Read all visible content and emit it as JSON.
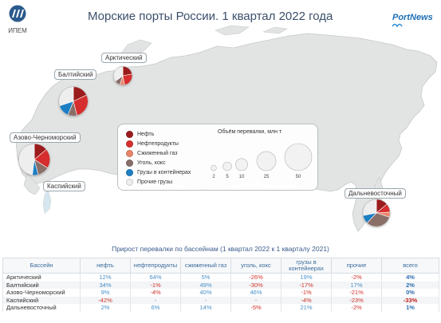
{
  "header": {
    "title": "Морские порты России. 1 квартал 2022 года",
    "logo_left_caption": "ИПЕМ",
    "logo_right": "PortNews"
  },
  "legend": {
    "items": [
      {
        "label": "Нефть",
        "color": "#9b1b1e"
      },
      {
        "label": "Нефтепродукты",
        "color": "#d62f2f"
      },
      {
        "label": "Сжиженный газ",
        "color": "#e9856c"
      },
      {
        "label": "Уголь, кокс",
        "color": "#8a6e68"
      },
      {
        "label": "Грузы в контейнерах",
        "color": "#1f7fc4"
      },
      {
        "label": "Прочие грузы",
        "color": "#eeeeee"
      }
    ],
    "size_title": "Объём перевалки, млн т",
    "size_values": [
      2,
      5,
      10,
      25,
      50
    ]
  },
  "basins": [
    {
      "label": "Арктический",
      "slices": [
        22,
        25,
        8,
        10,
        0,
        35
      ]
    },
    {
      "label": "Балтийский",
      "slices": [
        18,
        28,
        0,
        10,
        14,
        30
      ]
    },
    {
      "label": "Азово-Черноморский",
      "slices": [
        14,
        20,
        0,
        12,
        6,
        48
      ]
    },
    {
      "label": "Каспийский",
      "slices": [
        55,
        10,
        0,
        0,
        5,
        30
      ]
    },
    {
      "label": "Дальневосточный",
      "slices": [
        14,
        10,
        6,
        32,
        10,
        28
      ]
    }
  ],
  "table": {
    "title": "Прирост перевалки по бассейнам (1 квартал 2022 к 1 кварталу 2021)",
    "columns": [
      "Бассейн",
      "нефть",
      "нефтепродукты",
      "сжиженный газ",
      "уголь, кокс",
      "грузы в контейнерах",
      "прочие",
      "всего"
    ],
    "rows": [
      {
        "name": "Арктический",
        "values": [
          "12%",
          "64%",
          "5%",
          "-26%",
          "19%",
          "-2%",
          "4%"
        ]
      },
      {
        "name": "Балтийский",
        "values": [
          "34%",
          "-1%",
          "49%",
          "-30%",
          "-17%",
          "17%",
          "2%"
        ]
      },
      {
        "name": "Азово-Черноморский",
        "values": [
          "9%",
          "-4%",
          "40%",
          "46%",
          "-1%",
          "-21%",
          "0%"
        ]
      },
      {
        "name": "Каспийский",
        "values": [
          "-42%",
          "-",
          "-",
          "-",
          "-4%",
          "-23%",
          "-33%"
        ]
      },
      {
        "name": "Дальневосточный",
        "values": [
          "2%",
          "6%",
          "14%",
          "-5%",
          "21%",
          "-2%",
          "1%"
        ]
      }
    ]
  },
  "chart_data": {
    "type": "pie",
    "title": "Морские порты России. 1 квартал 2022 года",
    "series_names": [
      "Нефть",
      "Нефтепродукты",
      "Сжиженный газ",
      "Уголь, кокс",
      "Грузы в контейнерах",
      "Прочие грузы"
    ],
    "size_legend_title": "Объём перевалки, млн т",
    "size_legend_values": [
      2,
      5,
      10,
      25,
      50
    ],
    "pies": [
      {
        "name": "Арктический",
        "volume": 26,
        "slices": [
          22,
          25,
          8,
          10,
          0,
          35
        ]
      },
      {
        "name": "Балтийский",
        "volume": 63,
        "slices": [
          18,
          28,
          0,
          10,
          14,
          30
        ]
      },
      {
        "name": "Азово-Черноморский",
        "volume": 73,
        "slices": [
          14,
          20,
          0,
          12,
          6,
          48
        ]
      },
      {
        "name": "Каспийский",
        "volume": 1.2,
        "slices": [
          55,
          10,
          0,
          0,
          5,
          30
        ]
      },
      {
        "name": "Дальневосточный",
        "volume": 55,
        "slices": [
          14,
          10,
          6,
          32,
          10,
          28
        ]
      }
    ]
  }
}
